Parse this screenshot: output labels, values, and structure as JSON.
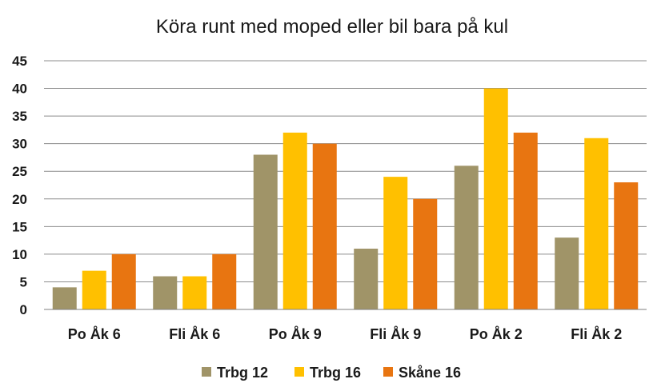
{
  "chart_data": {
    "type": "bar",
    "title": "Köra runt med moped eller bil bara på kul",
    "xlabel": "",
    "ylabel": "",
    "categories": [
      "Po Åk 6",
      "Fli Åk 6",
      "Po Åk 9",
      "Fli Åk 9",
      "Po Åk 2",
      "Fli Åk 2"
    ],
    "series": [
      {
        "name": "Trbg 12",
        "color": "#a09468",
        "values": [
          4,
          6,
          28,
          11,
          26,
          13
        ]
      },
      {
        "name": "Trbg 16",
        "color": "#ffc000",
        "values": [
          7,
          6,
          32,
          24,
          40,
          31
        ]
      },
      {
        "name": "Skåne 16",
        "color": "#e87511",
        "values": [
          10,
          10,
          30,
          20,
          32,
          23
        ]
      }
    ],
    "ylim": [
      0,
      45
    ],
    "yticks": [
      "0",
      "5",
      "10",
      "15",
      "20",
      "25",
      "30",
      "35",
      "40",
      "45"
    ],
    "grid": true,
    "legend": "bottom"
  }
}
